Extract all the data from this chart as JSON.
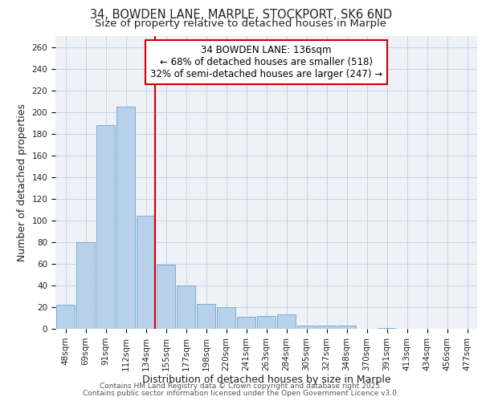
{
  "title1": "34, BOWDEN LANE, MARPLE, STOCKPORT, SK6 6ND",
  "title2": "Size of property relative to detached houses in Marple",
  "xlabel": "Distribution of detached houses by size in Marple",
  "ylabel": "Number of detached properties",
  "categories": [
    "48sqm",
    "69sqm",
    "91sqm",
    "112sqm",
    "134sqm",
    "155sqm",
    "177sqm",
    "198sqm",
    "220sqm",
    "241sqm",
    "263sqm",
    "284sqm",
    "305sqm",
    "327sqm",
    "348sqm",
    "370sqm",
    "391sqm",
    "413sqm",
    "434sqm",
    "456sqm",
    "477sqm"
  ],
  "values": [
    22,
    80,
    188,
    205,
    104,
    59,
    40,
    23,
    20,
    11,
    12,
    13,
    3,
    3,
    3,
    0,
    1,
    0,
    0,
    0,
    0
  ],
  "bar_color": "#b8d0ea",
  "bar_edge_color": "#7aafd4",
  "vline_index": 4,
  "vline_color": "#cc0000",
  "annotation_line1": "34 BOWDEN LANE: 136sqm",
  "annotation_line2": "← 68% of detached houses are smaller (518)",
  "annotation_line3": "32% of semi-detached houses are larger (247) →",
  "annotation_box_color": "#ffffff",
  "annotation_box_edge": "#cc0000",
  "ylim": [
    0,
    270
  ],
  "yticks": [
    0,
    20,
    40,
    60,
    80,
    100,
    120,
    140,
    160,
    180,
    200,
    220,
    240,
    260
  ],
  "background_color": "#eef2f7",
  "footer1": "Contains HM Land Registry data © Crown copyright and database right 2025.",
  "footer2": "Contains public sector information licensed under the Open Government Licence v3.0.",
  "title_fontsize": 10.5,
  "subtitle_fontsize": 9.5,
  "axis_label_fontsize": 9,
  "tick_fontsize": 7.5,
  "footer_fontsize": 6.5,
  "annotation_fontsize": 8.5
}
